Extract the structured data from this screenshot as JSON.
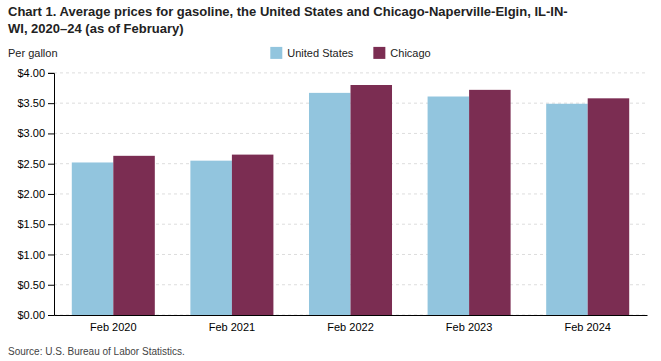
{
  "chart_data": {
    "type": "bar",
    "title": "Chart 1. Average prices for gasoline, the United States and Chicago-Naperville-Elgin, IL-IN-\nWI, 2020–24 (as of February)",
    "y_label": "Per gallon",
    "source": "Source: U.S. Bureau of Labor Statistics.",
    "categories": [
      "Feb 2020",
      "Feb 2021",
      "Feb 2022",
      "Feb 2023",
      "Feb 2024"
    ],
    "series": [
      {
        "name": "United States",
        "color": "#92C5DE",
        "values": [
          2.52,
          2.55,
          3.67,
          3.61,
          3.49
        ]
      },
      {
        "name": "Chicago",
        "color": "#7B2D52",
        "values": [
          2.63,
          2.65,
          3.8,
          3.72,
          3.58
        ]
      }
    ],
    "ylim": [
      0,
      4.0
    ],
    "yticks": [
      {
        "value": 0.0,
        "label": "$0.00"
      },
      {
        "value": 0.5,
        "label": "$0.50"
      },
      {
        "value": 1.0,
        "label": "$1.00"
      },
      {
        "value": 1.5,
        "label": "$1.50"
      },
      {
        "value": 2.0,
        "label": "$2.00"
      },
      {
        "value": 2.5,
        "label": "$2.50"
      },
      {
        "value": 3.0,
        "label": "$3.00"
      },
      {
        "value": 3.5,
        "label": "$3.50"
      },
      {
        "value": 4.0,
        "label": "$4.00"
      }
    ],
    "grid": true,
    "legend": "top"
  }
}
